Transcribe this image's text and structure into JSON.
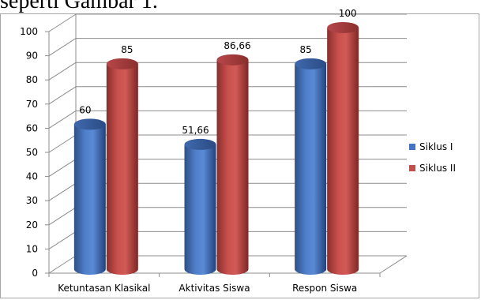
{
  "document": {
    "visible_text": "seperti Gambar 1."
  },
  "chart_data": {
    "type": "bar",
    "style": "3d-cylinder",
    "title": "",
    "xlabel": "",
    "ylabel": "",
    "categories": [
      "Ketuntasan Klasikal",
      "Aktivitas Siswa",
      "Respon Siswa"
    ],
    "series": [
      {
        "name": "Siklus I",
        "values": [
          60,
          51.66,
          85
        ],
        "labels": [
          "60",
          "51,66",
          "85"
        ],
        "color": "#4472c4"
      },
      {
        "name": "Siklus II",
        "values": [
          85,
          86.66,
          100
        ],
        "labels": [
          "85",
          "86,66",
          "100"
        ],
        "color": "#c0504d"
      }
    ],
    "ylim": [
      0,
      100
    ],
    "yticks": [
      0,
      10,
      20,
      30,
      40,
      50,
      60,
      70,
      80,
      90,
      100
    ],
    "grid": true,
    "legend_position": "right"
  }
}
